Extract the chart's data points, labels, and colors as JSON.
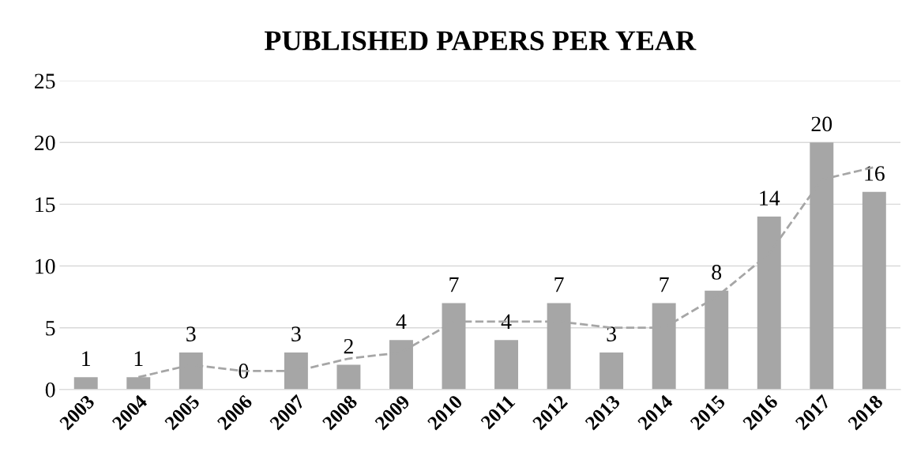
{
  "chart_data": {
    "type": "bar",
    "title": "PUBLISHED PAPERS PER YEAR",
    "categories": [
      "2003",
      "2004",
      "2005",
      "2006",
      "2007",
      "2008",
      "2009",
      "2010",
      "2011",
      "2012",
      "2013",
      "2014",
      "2015",
      "2016",
      "2017",
      "2018"
    ],
    "series": [
      {
        "color": "#a6a6a6",
        "values": [
          1,
          1,
          3,
          0,
          3,
          2,
          4,
          7,
          4,
          7,
          3,
          7,
          8,
          14,
          20,
          16
        ],
        "data_labels": true
      },
      {
        "type": "line",
        "color": "#a6a6a6",
        "line_style": "dashed",
        "marker": "none",
        "values": [
          null,
          1,
          2,
          1.5,
          1.5,
          2.5,
          3,
          5.5,
          5.5,
          5.5,
          5,
          5,
          7.5,
          11,
          17,
          18
        ]
      }
    ],
    "ylim": [
      0,
      25
    ],
    "yticks": [
      0,
      5,
      10,
      15,
      20,
      25
    ],
    "grid": "y"
  }
}
